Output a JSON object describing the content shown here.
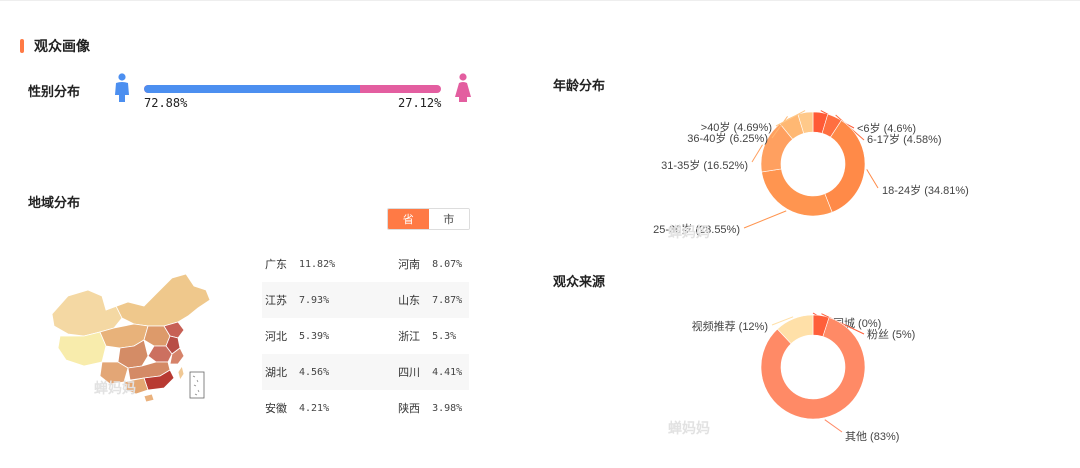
{
  "section_title": "观众画像",
  "gender": {
    "label": "性别分布",
    "male_pct": "72.88%",
    "female_pct": "27.12%",
    "male_fraction": 0.7288,
    "male_color": "#4c8ff0",
    "female_color": "#e35ea0",
    "male_icon": "male-person-icon",
    "female_icon": "female-person-icon"
  },
  "region": {
    "label": "地域分布",
    "toggle": [
      "省",
      "市"
    ],
    "rows": [
      [
        {
          "name": "广东",
          "pct": "11.82%"
        },
        {
          "name": "河南",
          "pct": "8.07%"
        }
      ],
      [
        {
          "name": "江苏",
          "pct": "7.93%"
        },
        {
          "name": "山东",
          "pct": "7.87%"
        }
      ],
      [
        {
          "name": "河北",
          "pct": "5.39%"
        },
        {
          "name": "浙江",
          "pct": "5.3%"
        }
      ],
      [
        {
          "name": "湖北",
          "pct": "4.56%"
        },
        {
          "name": "四川",
          "pct": "4.41%"
        }
      ],
      [
        {
          "name": "安徽",
          "pct": "4.21%"
        },
        {
          "name": "陕西",
          "pct": "3.98%"
        }
      ]
    ]
  },
  "watermark": "蝉妈妈",
  "age": {
    "label": "年龄分布",
    "chart_data": {
      "type": "pie",
      "donut": true,
      "categories": [
        "<6岁",
        "6-17岁",
        "18-24岁",
        "25-30岁",
        "31-35岁",
        "36-40岁",
        ">40岁"
      ],
      "values": [
        4.6,
        4.58,
        34.81,
        28.55,
        16.52,
        6.25,
        4.69
      ],
      "labels": [
        "<6岁 (4.6%)",
        "6-17岁 (4.58%)",
        "18-24岁 (34.81%)",
        "25-30岁 (28.55%)",
        "31-35岁 (16.52%)",
        "36-40岁 (6.25%)",
        ">40岁 (4.69%)"
      ],
      "colors": [
        "#ff5a36",
        "#ff6f40",
        "#ff8a48",
        "#ff9550",
        "#ffa060",
        "#ffb873",
        "#ffc98a"
      ]
    }
  },
  "source": {
    "label": "观众来源",
    "chart_data": {
      "type": "pie",
      "donut": true,
      "categories": [
        "同城",
        "粉丝",
        "其他",
        "视频推荐"
      ],
      "values": [
        0,
        5,
        83,
        12
      ],
      "labels": [
        "同城 (0%)",
        "粉丝 (5%)",
        "其他 (83%)",
        "视频推荐 (12%)"
      ],
      "colors": [
        "#ff4a30",
        "#ff5f3a",
        "#ff8a66",
        "#ffe0a8"
      ]
    }
  }
}
